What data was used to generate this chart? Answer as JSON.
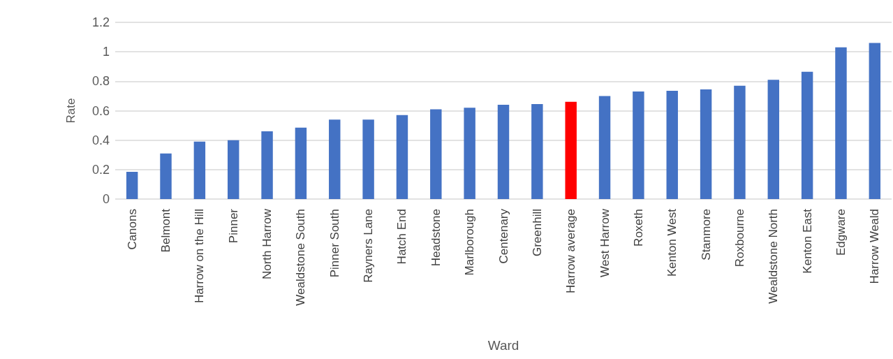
{
  "chart_data": {
    "type": "bar",
    "xlabel": "Ward",
    "ylabel": "Rate",
    "categories": [
      "Canons",
      "Belmont",
      "Harrow on the Hill",
      "Pinner",
      "North Harrow",
      "Wealdstone South",
      "Pinner South",
      "Rayners Lane",
      "Hatch End",
      "Headstone",
      "Marlborough",
      "Centenary",
      "Greenhill",
      "Harrow average",
      "West Harrow",
      "Roxeth",
      "Kenton West",
      "Stanmore",
      "Roxbourne",
      "Wealdstone North",
      "Kenton East",
      "Edgware",
      "Harrow Weald"
    ],
    "values": [
      0.185,
      0.31,
      0.39,
      0.4,
      0.46,
      0.485,
      0.54,
      0.54,
      0.57,
      0.61,
      0.62,
      0.64,
      0.645,
      0.66,
      0.7,
      0.73,
      0.735,
      0.745,
      0.77,
      0.81,
      0.865,
      1.03,
      1.06
    ],
    "colors": [
      "#4472c4",
      "#4472c4",
      "#4472c4",
      "#4472c4",
      "#4472c4",
      "#4472c4",
      "#4472c4",
      "#4472c4",
      "#4472c4",
      "#4472c4",
      "#4472c4",
      "#4472c4",
      "#4472c4",
      "#ff0000",
      "#4472c4",
      "#4472c4",
      "#4472c4",
      "#4472c4",
      "#4472c4",
      "#4472c4",
      "#4472c4",
      "#4472c4",
      "#4472c4"
    ],
    "ylim": [
      0,
      1.2
    ],
    "yticks": [
      0,
      0.2,
      0.4,
      0.6,
      0.8,
      1,
      1.2
    ],
    "grid": "y"
  }
}
